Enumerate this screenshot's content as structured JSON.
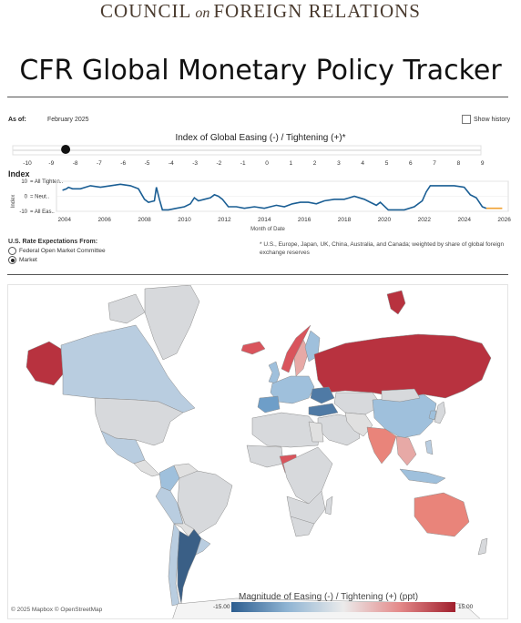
{
  "brand": {
    "part1": "COUNCIL",
    "part2": "on",
    "part3": "FOREIGN RELATIONS"
  },
  "title": "CFR Global Monetary Policy Tracker",
  "as_of": {
    "label": "As of:",
    "value": "February 2025"
  },
  "show_history_label": "Show history",
  "slider": {
    "title": "Index of Global Easing (-) / Tightening (+)*",
    "ticks": [
      "-10",
      "-9",
      "-8",
      "-7",
      "-6",
      "-5",
      "-4",
      "-3",
      "-2",
      "-1",
      "0",
      "1",
      "2",
      "3",
      "4",
      "5",
      "6",
      "7",
      "8",
      "9"
    ],
    "value": -8.4
  },
  "index_chart": {
    "heading": "Index",
    "y_axis_title": "Index",
    "y_ticks": [
      "10",
      "0",
      "-10"
    ],
    "y_labels": [
      "= All Tighten..",
      "= Neut..",
      "= All Eas.."
    ],
    "x_ticks": [
      "2004",
      "2006",
      "2008",
      "2010",
      "2012",
      "2014",
      "2016",
      "2018",
      "2020",
      "2022",
      "2024",
      "2026"
    ],
    "x_axis_title": "Month of Date"
  },
  "chart_data": {
    "type": "line",
    "xlabel": "Month of Date",
    "ylabel": "Index",
    "ylim": [
      -10,
      10
    ],
    "xlim": [
      2003.6,
      2026.2
    ],
    "series": [
      {
        "x": [
          2003.9,
          2004.1,
          2004.2,
          2004.4,
          2004.8,
          2005.3,
          2005.8,
          2006.3,
          2006.8,
          2007.3,
          2007.7,
          2008.0,
          2008.2,
          2008.5,
          2008.6,
          2008.75,
          2008.9,
          2009.2,
          2009.6,
          2010.0,
          2010.3,
          2010.5,
          2010.7,
          2011.0,
          2011.3,
          2011.5,
          2011.7,
          2011.9,
          2012.2,
          2012.6,
          2013.0,
          2013.5,
          2014.0,
          2014.3,
          2014.6,
          2015.0,
          2015.4,
          2015.8,
          2016.2,
          2016.6,
          2017.0,
          2017.5,
          2018.0,
          2018.5,
          2019.0,
          2019.3,
          2019.6,
          2019.8,
          2020.2,
          2020.6,
          2021.0,
          2021.5,
          2021.9,
          2022.1,
          2022.3,
          2022.6,
          2023.0,
          2023.5,
          2024.0,
          2024.3,
          2024.6,
          2024.9,
          2025.1
        ],
        "y": [
          4,
          5,
          6,
          5,
          5,
          7,
          6,
          7,
          8,
          7,
          5,
          -2,
          -4,
          -3,
          6,
          -2,
          -9,
          -9,
          -8,
          -7,
          -5,
          -1,
          -3,
          -2,
          -1,
          1,
          0,
          -2,
          -7,
          -7,
          -8,
          -7,
          -8,
          -7,
          -6,
          -7,
          -5,
          -4,
          -4,
          -5,
          -3,
          -2,
          -2,
          0,
          -2,
          -4,
          -6,
          -4,
          -9,
          -9,
          -9,
          -7,
          -3,
          3,
          7,
          7,
          7,
          7,
          6,
          1,
          -1,
          -7,
          -8
        ]
      },
      {
        "x": [
          2025.1,
          2025.3,
          2025.6,
          2025.9
        ],
        "y": [
          -8,
          -8,
          -8,
          -8
        ]
      }
    ],
    "colors": [
      "#1a5e94",
      "#f0a030"
    ]
  },
  "rate_expectations": {
    "heading": "U.S. Rate Expectations From:",
    "options": [
      "Federal Open Market Committee",
      "Market"
    ],
    "selected": "Market"
  },
  "footnote": "* U.S., Europe, Japan, UK, China, Australia, and Canada;  weighted by share of global foreign exchange reserves",
  "map": {
    "attribution": "© 2025 Mapbox © OpenStreetMap",
    "legend_title": "Magnitude of Easing (-) / Tightening (+) (ppt)",
    "legend_min": "-15.00",
    "legend_max": "15.00",
    "colors": {
      "deep_red": "#b8323f",
      "red": "#d9545c",
      "salmon": "#e9847a",
      "light_pink": "#e7a9a6",
      "neutral": "#e0e0e0",
      "light_gray": "#d7d9dc",
      "pale_blue": "#b9cde0",
      "light_blue": "#9fc0dc",
      "mid_blue": "#6e9ec8",
      "steel_blue": "#4f7aa5",
      "dark_blue": "#3a5f86",
      "green": "#29a343",
      "ocean": "#ffffff",
      "border": "#8c8c8c"
    }
  }
}
